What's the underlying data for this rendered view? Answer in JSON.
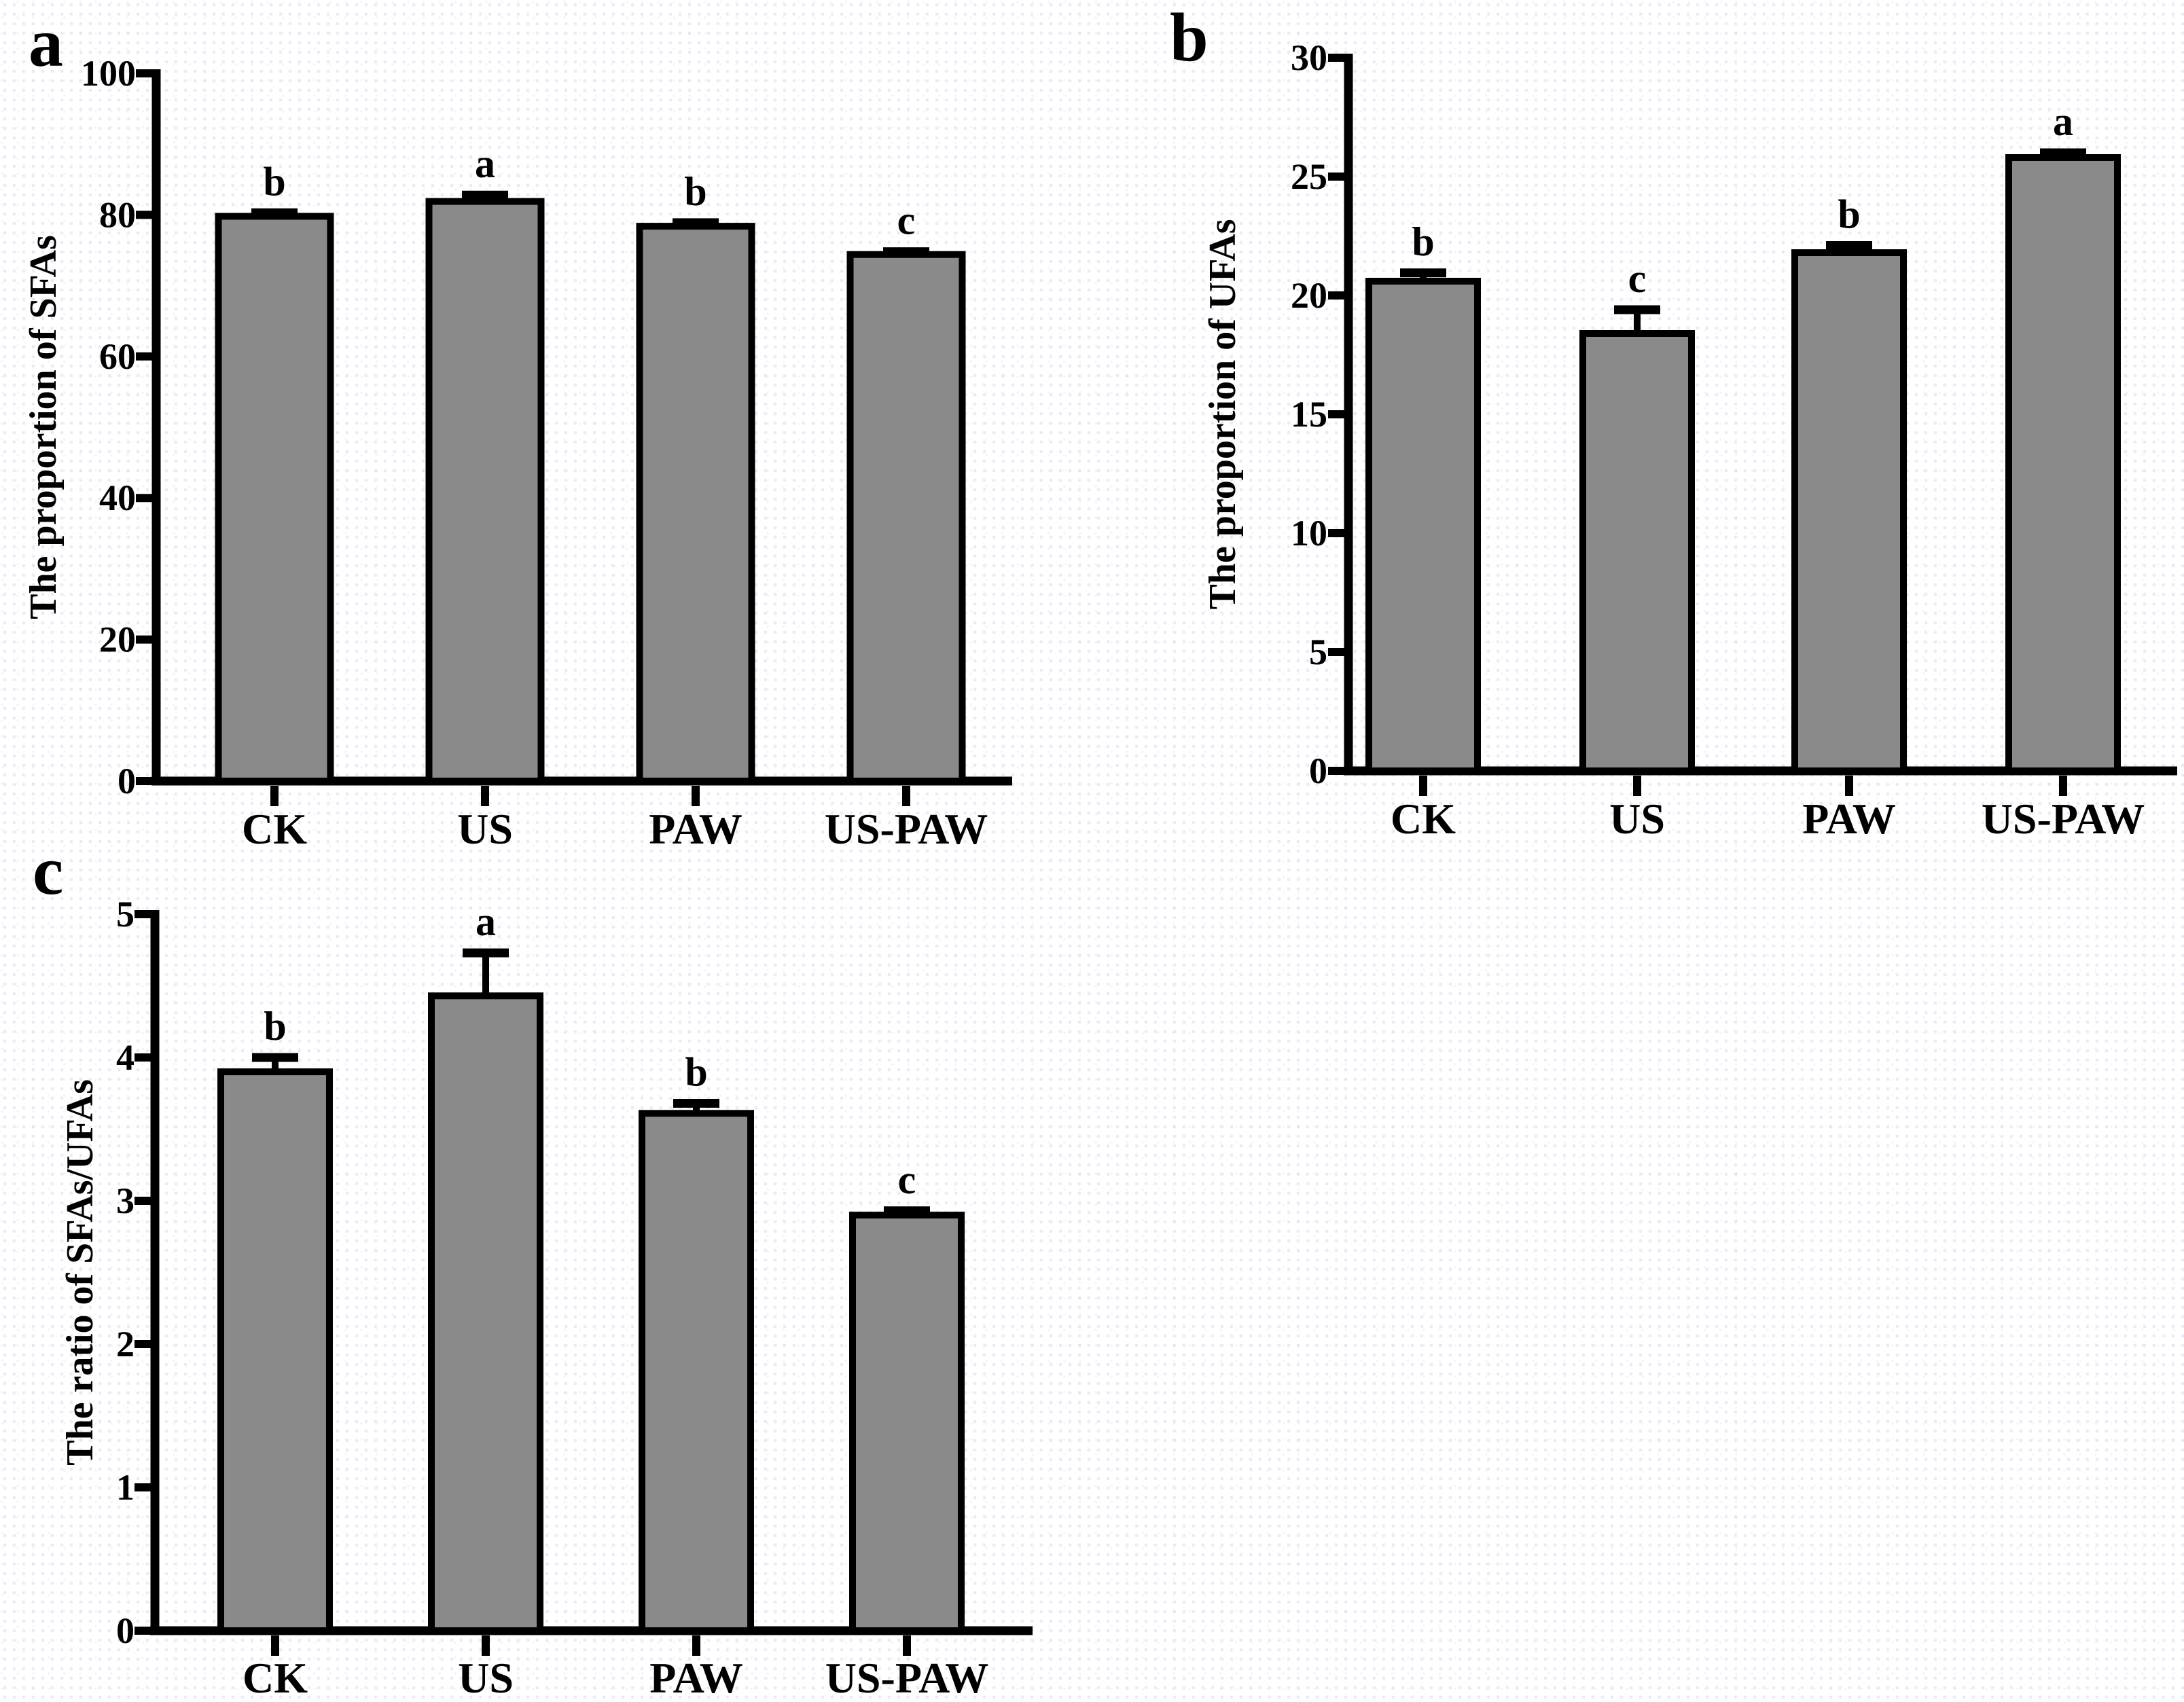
{
  "figure": {
    "background_color": "#ffffff",
    "bar_fill_color": "#8a8a8a",
    "line_color": "#000000",
    "panels": [
      {
        "letter": "a"
      },
      {
        "letter": "b"
      },
      {
        "letter": "c"
      }
    ]
  },
  "chart_data": [
    {
      "type": "bar",
      "panel_label": "a",
      "title": "",
      "xlabel": "",
      "ylabel": "The proportion of SFAs",
      "categories": [
        "CK",
        "US",
        "PAW",
        "US-PAW"
      ],
      "values": [
        79.8,
        81.9,
        78.4,
        74.4
      ],
      "errors_plus": [
        0.5,
        0.9,
        0.5,
        0.4
      ],
      "sig_letters": [
        "b",
        "a",
        "b",
        "c"
      ],
      "ylim": [
        0,
        100
      ],
      "yticks": [
        0,
        20,
        40,
        60,
        80,
        100
      ],
      "grid": "off",
      "legend": "none"
    },
    {
      "type": "bar",
      "panel_label": "b",
      "title": "",
      "xlabel": "",
      "ylabel": "The proportion of UFAs",
      "categories": [
        "CK",
        "US",
        "PAW",
        "US-PAW"
      ],
      "values": [
        20.6,
        18.4,
        21.8,
        25.8
      ],
      "errors_plus": [
        0.35,
        1.0,
        0.3,
        0.2
      ],
      "sig_letters": [
        "b",
        "c",
        "b",
        "a"
      ],
      "ylim": [
        0,
        30
      ],
      "yticks": [
        0,
        5,
        10,
        15,
        20,
        25,
        30
      ],
      "grid": "off",
      "legend": "none"
    },
    {
      "type": "bar",
      "panel_label": "c",
      "title": "",
      "xlabel": "",
      "ylabel": "The ratio of SFAs/UFAs",
      "categories": [
        "CK",
        "US",
        "PAW",
        "US-PAW"
      ],
      "values": [
        3.9,
        4.43,
        3.61,
        2.9
      ],
      "errors_plus": [
        0.1,
        0.3,
        0.07,
        0.03
      ],
      "sig_letters": [
        "b",
        "a",
        "b",
        "c"
      ],
      "ylim": [
        0,
        5
      ],
      "yticks": [
        0,
        1,
        2,
        3,
        4,
        5
      ],
      "grid": "off",
      "legend": "none"
    }
  ]
}
